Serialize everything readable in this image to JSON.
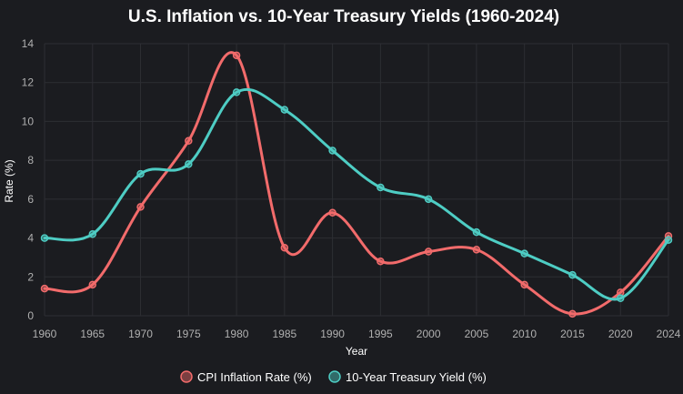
{
  "chart_data": {
    "type": "line",
    "title": "U.S. Inflation vs. 10-Year Treasury Yields (1960-2024)",
    "xlabel": "Year",
    "ylabel": "Rate (%)",
    "categories": [
      "1960",
      "1965",
      "1970",
      "1975",
      "1980",
      "1985",
      "1990",
      "1995",
      "2000",
      "2005",
      "2010",
      "2015",
      "2020",
      "2024"
    ],
    "ylim": [
      0,
      14
    ],
    "yticks": [
      0,
      2,
      4,
      6,
      8,
      10,
      12,
      14
    ],
    "grid": true,
    "legend_position": "bottom",
    "series": [
      {
        "name": "CPI Inflation Rate (%)",
        "color": "#f26b6b",
        "values": [
          1.4,
          1.6,
          5.6,
          9.0,
          13.4,
          3.5,
          5.3,
          2.8,
          3.3,
          3.4,
          1.6,
          0.1,
          1.2,
          4.1
        ]
      },
      {
        "name": "10-Year Treasury Yield (%)",
        "color": "#4ecdc4",
        "values": [
          4.0,
          4.2,
          7.3,
          7.8,
          11.5,
          10.6,
          8.5,
          6.6,
          6.0,
          4.3,
          3.2,
          2.1,
          0.9,
          3.9
        ]
      }
    ]
  }
}
